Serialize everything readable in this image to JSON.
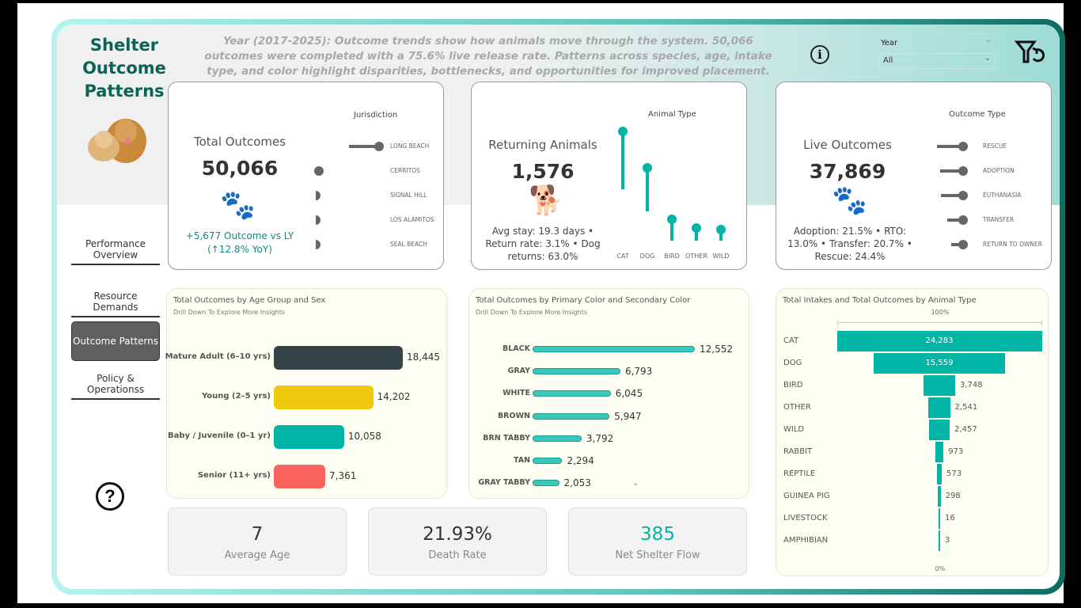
{
  "header": {
    "title": "Shelter Outcome Patterns",
    "description": "Year (2017-2025): Outcome trends show how animals move through the system. 50,066 outcomes were completed with a 75.6% live release rate. Patterns across species, age, intake type, and color highlight disparities, bottlenecks, and opportunities for improved placement.",
    "year_filter_label": "Year",
    "year_filter_value": "All"
  },
  "nav": [
    {
      "label": "Performance Overview"
    },
    {
      "label": "Resource Demands"
    },
    {
      "label": "Outcome Patterns",
      "active": true
    },
    {
      "label": "Policy & Operationss"
    }
  ],
  "kpi_total": {
    "title": "Total Outcomes",
    "value": "50,066",
    "delta": "+5,677 Outcome vs LY (↑12.8% YoY)",
    "slicer_title": "Jurisdiction",
    "items": [
      {
        "label": "LONG BEACH",
        "level": 1.0
      },
      {
        "label": "CERRITOS",
        "level": 0.05
      },
      {
        "label": "SIGNAL HILL",
        "level": 0.01
      },
      {
        "label": "LOS ALAMITOS",
        "level": 0.01
      },
      {
        "label": "SEAL BEACH",
        "level": 0.01
      }
    ]
  },
  "kpi_return": {
    "title": "Returning Animals",
    "value": "1,576",
    "note": "Avg stay: 19.3 days • Return rate: 3.1% • Dog returns: 63.0%",
    "slicer_title": "Animal Type",
    "items": [
      {
        "label": "CAT",
        "level": 1.0
      },
      {
        "label": "DOG",
        "level": 0.65
      },
      {
        "label": "BIRD",
        "level": 0.15
      },
      {
        "label": "OTHER",
        "level": 0.06
      },
      {
        "label": "WILD",
        "level": 0.05
      }
    ]
  },
  "kpi_live": {
    "title": "Live Outcomes",
    "value": "37,869",
    "note": "Adoption: 21.5% • RTO: 13.0% • Transfer: 20.7% • Rescue: 24.4%",
    "slicer_title": "Outcome Type",
    "items": [
      {
        "label": "RESCUE",
        "level": 1.0
      },
      {
        "label": "ADOPTION",
        "level": 0.88
      },
      {
        "label": "EUTHANASIA",
        "level": 0.85
      },
      {
        "label": "TRANSFER",
        "level": 0.6
      },
      {
        "label": "RETURN TO OWNER",
        "level": 0.45
      }
    ]
  },
  "stats": [
    {
      "value": "7",
      "label": "Average Age"
    },
    {
      "value": "21.93%",
      "label": "Death Rate"
    },
    {
      "value": "385",
      "label": "Net Shelter Flow"
    }
  ],
  "colors": {
    "accent": "#00b5a5",
    "dark": "#0b6358"
  },
  "chart_data": [
    {
      "type": "bar",
      "title": "Total Outcomes by Age Group and Sex",
      "subtitle": "Drill Down To Explore More Insights",
      "categories": [
        "Mature Adult (6–10 yrs)",
        "Young (2–5 yrs)",
        "Baby / Juvenile (0–1 yr)",
        "Senior (11+ yrs)"
      ],
      "values": [
        18445,
        14202,
        10058,
        7361
      ],
      "labels": [
        "18,445",
        "14,202",
        "10,058",
        "7,361"
      ],
      "colors": [
        "#344347",
        "#f0c80c",
        "#00b5a5",
        "#fc625e"
      ]
    },
    {
      "type": "bar",
      "title": "Total Outcomes by Primary Color and Secondary Color",
      "subtitle": "Drill Down To Explore More Insights",
      "categories": [
        "BLACK",
        "GRAY",
        "WHITE",
        "BROWN",
        "BRN TABBY",
        "TAN",
        "GRAY TABBY"
      ],
      "values": [
        12552,
        6793,
        6045,
        5947,
        3792,
        2294,
        2053
      ],
      "labels": [
        "12,552",
        "6,793",
        "6,045",
        "5,947",
        "3,792",
        "2,294",
        "2,053"
      ]
    },
    {
      "type": "bar",
      "subtype": "funnel",
      "title": "Total Intakes and Total Outcomes by Animal Type",
      "top_label": "100%",
      "bottom_label": "0%",
      "categories": [
        "CAT",
        "DOG",
        "BIRD",
        "OTHER",
        "WILD",
        "RABBIT",
        "REPTILE",
        "GUINEA PIG",
        "LIVESTOCK",
        "AMPHIBIAN"
      ],
      "values": [
        24283,
        15559,
        3748,
        2541,
        2457,
        973,
        573,
        298,
        16,
        3
      ],
      "labels": [
        "24,283",
        "15,559",
        "3,748",
        "2,541",
        "2,457",
        "973",
        "573",
        "298",
        "16",
        "3"
      ]
    }
  ]
}
